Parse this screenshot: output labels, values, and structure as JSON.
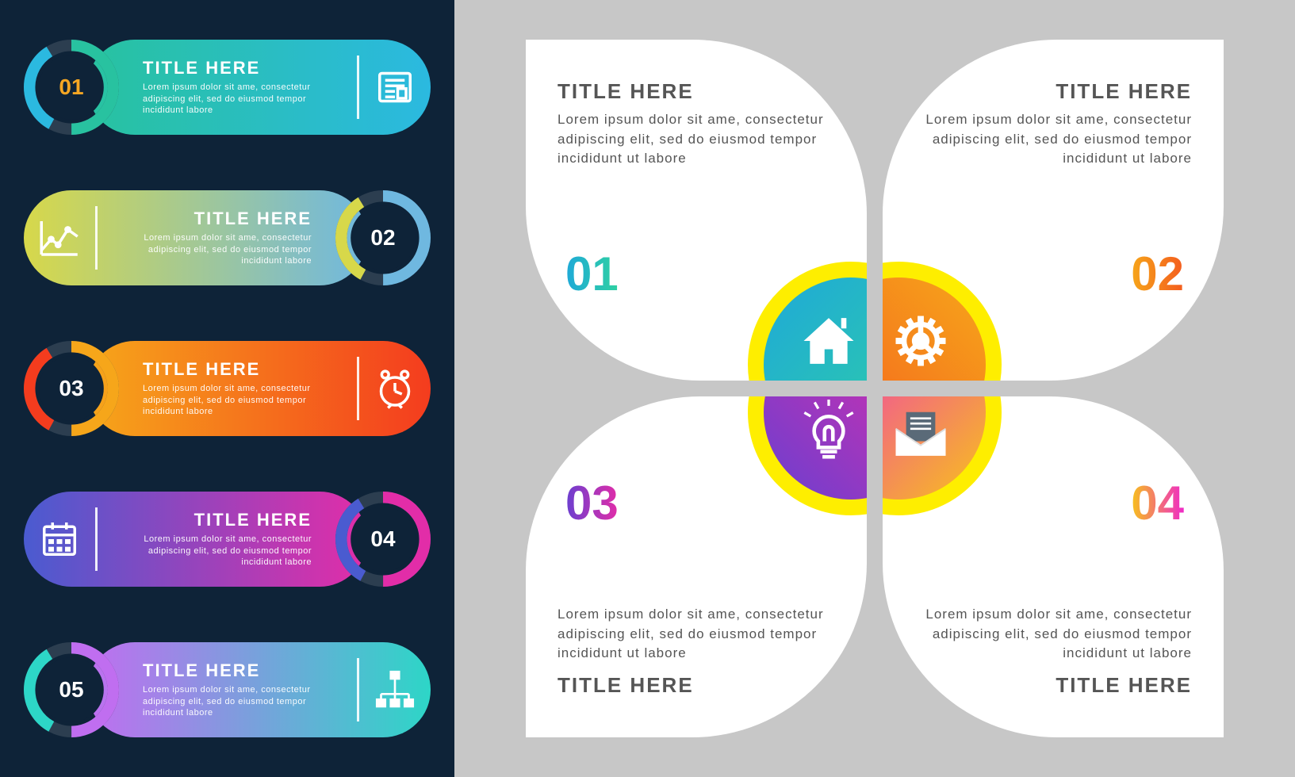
{
  "left": {
    "background": "#0e2338",
    "items": [
      {
        "num": "01",
        "num_color": "#f5a623",
        "side": "left",
        "icon": "newspaper",
        "title": "TITLE HERE",
        "desc": "Lorem ipsum dolor sit ame, consectetur adipiscing elit, sed do eiusmod tempor incididunt labore",
        "gradient": [
          "#28c2a0",
          "#2bb9e0"
        ],
        "ring_colors": [
          "#28c2a0",
          "#2bb9e0",
          "#2c3e50"
        ]
      },
      {
        "num": "02",
        "num_color": "#ffffff",
        "side": "right",
        "icon": "chart",
        "title": "TITLE HERE",
        "desc": "Lorem ipsum dolor sit ame, consectetur adipiscing elit, sed do eiusmod tempor incididunt labore",
        "gradient": [
          "#6fb8e0",
          "#d7d84a"
        ],
        "ring_colors": [
          "#6fb8e0",
          "#d7d84a",
          "#2c3e50"
        ]
      },
      {
        "num": "03",
        "num_color": "#ffffff",
        "side": "left",
        "icon": "clock",
        "title": "TITLE HERE",
        "desc": "Lorem ipsum dolor sit ame, consectetur adipiscing elit, sed do eiusmod tempor incididunt labore",
        "gradient": [
          "#f6a61a",
          "#f43c1e"
        ],
        "ring_colors": [
          "#f6a61a",
          "#f43c1e",
          "#2c3e50"
        ]
      },
      {
        "num": "04",
        "num_color": "#ffffff",
        "side": "right",
        "icon": "calendar",
        "title": "TITLE HERE",
        "desc": "Lorem ipsum dolor sit ame, consectetur adipiscing elit, sed do eiusmod tempor incididunt labore",
        "gradient": [
          "#e22da8",
          "#4a5bd0"
        ],
        "ring_colors": [
          "#e22da8",
          "#4a5bd0",
          "#2c3e50"
        ]
      },
      {
        "num": "05",
        "num_color": "#ffffff",
        "side": "left",
        "icon": "network",
        "title": "TITLE HERE",
        "desc": "Lorem ipsum dolor sit ame, consectetur adipiscing elit, sed do eiusmod tempor incididunt labore",
        "gradient": [
          "#c06ef0",
          "#2dd6c7"
        ],
        "ring_colors": [
          "#c06ef0",
          "#2dd6c7",
          "#2c3e50"
        ]
      }
    ]
  },
  "right": {
    "background": "#c7c7c7",
    "ring_color": "#feee00",
    "petals": [
      {
        "pos": "tl",
        "num": "01",
        "icon": "house",
        "title": "TITLE HERE",
        "desc": "Lorem ipsum dolor sit ame, consectetur adipiscing elit, sed do eiusmod tempor incididunt ut labore",
        "gradient": [
          "#1fa9d8",
          "#2fd1a2"
        ],
        "num_gradient": [
          "#1fa9d8",
          "#2fd1a2"
        ]
      },
      {
        "pos": "tr",
        "num": "02",
        "icon": "gear",
        "title": "TITLE HERE",
        "desc": "Lorem ipsum dolor sit ame, consectetur adipiscing elit, sed do eiusmod tempor incididunt ut labore",
        "gradient": [
          "#f6a61a",
          "#f45c1e"
        ],
        "num_gradient": [
          "#f6a61a",
          "#f45c1e"
        ]
      },
      {
        "pos": "bl",
        "num": "03",
        "icon": "bulb",
        "title": "TITLE HERE",
        "desc": "Lorem ipsum dolor sit ame, consectetur adipiscing elit, sed do eiusmod tempor incididunt ut labore",
        "gradient": [
          "#6a3fd0",
          "#e22da8"
        ],
        "num_gradient": [
          "#6a3fd0",
          "#e22da8"
        ]
      },
      {
        "pos": "br",
        "num": "04",
        "icon": "mail",
        "title": "TITLE HERE",
        "desc": "Lorem ipsum dolor sit ame, consectetur adipiscing elit, sed do eiusmod tempor incididunt ut labore",
        "gradient": [
          "#f7c21a",
          "#ef29c8"
        ],
        "num_gradient": [
          "#f7c21a",
          "#ef29c8"
        ]
      }
    ]
  },
  "typography": {
    "left_title_size": 22,
    "left_desc_size": 11,
    "right_title_size": 26,
    "right_desc_size": 17,
    "right_num_size": 60
  }
}
